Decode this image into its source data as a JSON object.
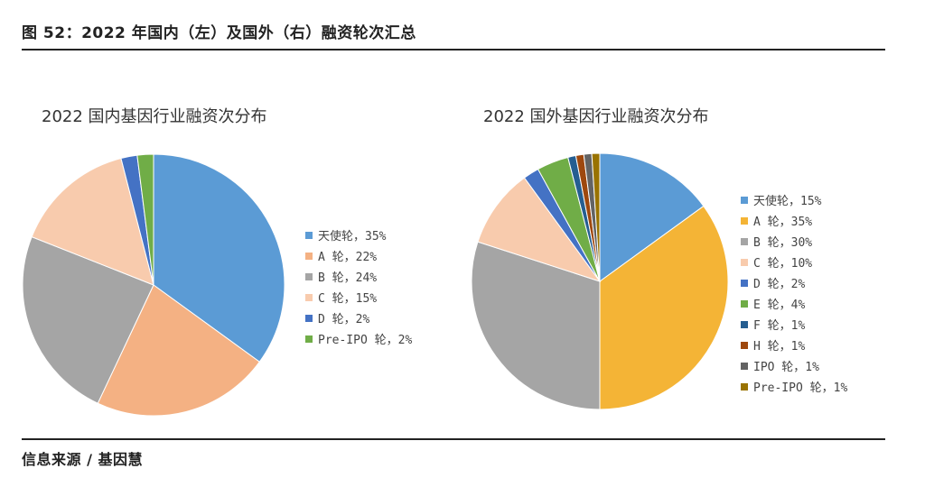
{
  "figure": {
    "title": "图 52：2022 年国内（左）及国外（右）融资轮次汇总",
    "source": "信息来源 / 基因慧"
  },
  "chart_data": [
    {
      "type": "pie",
      "title": "2022 国内基因行业融资次分布",
      "legend_position": "right",
      "slices": [
        {
          "label": "天使轮，35%",
          "value": 35,
          "color": "#5b9bd5"
        },
        {
          "label": "A 轮，22%",
          "value": 22,
          "color": "#f4b183"
        },
        {
          "label": "B 轮，24%",
          "value": 24,
          "color": "#a5a5a5"
        },
        {
          "label": "C 轮，15%",
          "value": 15,
          "color": "#f8cbad"
        },
        {
          "label": "D 轮，2%",
          "value": 2,
          "color": "#4472c4"
        },
        {
          "label": "Pre-IPO 轮，2%",
          "value": 2,
          "color": "#70ad47"
        }
      ]
    },
    {
      "type": "pie",
      "title": "2022 国外基因行业融资次分布",
      "legend_position": "right",
      "slices": [
        {
          "label": "天使轮，15%",
          "value": 15,
          "color": "#5b9bd5"
        },
        {
          "label": "A 轮，35%",
          "value": 35,
          "color": "#f4b436"
        },
        {
          "label": "B 轮，30%",
          "value": 30,
          "color": "#a5a5a5"
        },
        {
          "label": "C 轮，10%",
          "value": 10,
          "color": "#f8cbad"
        },
        {
          "label": "D 轮，2%",
          "value": 2,
          "color": "#4472c4"
        },
        {
          "label": "E 轮，4%",
          "value": 4,
          "color": "#70ad47"
        },
        {
          "label": "F 轮，1%",
          "value": 1,
          "color": "#255e91"
        },
        {
          "label": "H 轮，1%",
          "value": 1,
          "color": "#9e480e"
        },
        {
          "label": "IPO 轮，1%",
          "value": 1,
          "color": "#636363"
        },
        {
          "label": "Pre-IPO 轮，1%",
          "value": 1,
          "color": "#997300"
        }
      ]
    }
  ]
}
